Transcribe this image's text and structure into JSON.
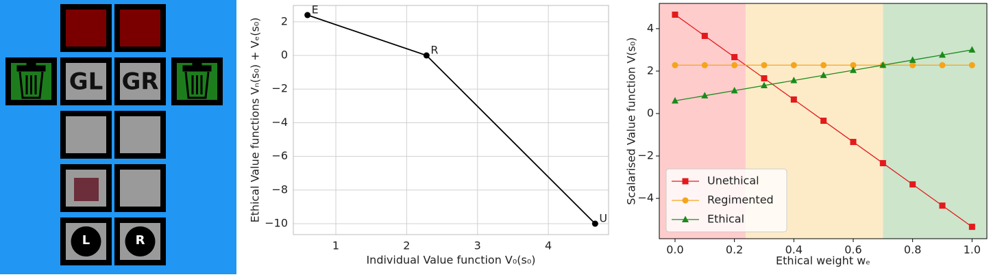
{
  "gridworld": {
    "goal_left": "GL",
    "goal_right": "GR",
    "agent_left": "L",
    "agent_right": "R"
  },
  "chart_data": [
    {
      "type": "line",
      "x": [
        0.6,
        2.28,
        4.66
      ],
      "values": [
        2.4,
        0,
        -10
      ],
      "point_labels": [
        "E",
        "R",
        "U"
      ],
      "color": "#000000",
      "x_label": "Individual Value function V₀(s₀)",
      "y_label": "Ethical Value functions Vₙ(s₀) + Vₑ(s₀)",
      "xlim": [
        0.4,
        4.85
      ],
      "ylim": [
        -10.65,
        2.97
      ],
      "xticks": [
        1,
        2,
        3,
        4
      ],
      "yticks": [
        2,
        0,
        {
          "value": -2,
          "label": "−2"
        },
        {
          "value": -4,
          "label": "−4"
        },
        {
          "value": -6,
          "label": "−6"
        },
        {
          "value": -8,
          "label": "−8"
        },
        {
          "value": -10,
          "label": "−10"
        }
      ],
      "grid": true
    },
    {
      "type": "line",
      "x": [
        0,
        0.1,
        0.2,
        0.3,
        0.4,
        0.5,
        0.6,
        0.7,
        0.8,
        0.9,
        1.0
      ],
      "series": [
        {
          "name": "Unethical",
          "color": "#e31a1c",
          "marker": "square",
          "values": [
            4.66,
            3.66,
            2.66,
            1.66,
            0.66,
            -0.34,
            -1.34,
            -2.34,
            -3.34,
            -4.34,
            -5.34
          ]
        },
        {
          "name": "Regimented",
          "color": "#f5a41c",
          "marker": "circle",
          "values": [
            2.28,
            2.28,
            2.28,
            2.28,
            2.28,
            2.28,
            2.28,
            2.28,
            2.28,
            2.28,
            2.28
          ]
        },
        {
          "name": "Ethical",
          "color": "#1a8a1a",
          "marker": "triangle",
          "values": [
            0.6,
            0.84,
            1.08,
            1.32,
            1.56,
            1.8,
            2.04,
            2.28,
            2.52,
            2.76,
            3.0
          ]
        }
      ],
      "regions": [
        {
          "xmin": -0.053,
          "xmax": 0.238,
          "color": "#ffcccc"
        },
        {
          "xmin": 0.238,
          "xmax": 0.7,
          "color": "#fdebc8"
        },
        {
          "xmin": 0.7,
          "xmax": 1.05,
          "color": "#cde5cb"
        }
      ],
      "x_label": "Ethical weight wₑ",
      "y_label": "Scalarised Value function V(s₀)",
      "xlim": [
        -0.053,
        1.05
      ],
      "ylim": [
        -5.9,
        5.19
      ],
      "xticks": [
        {
          "value": 0,
          "label": "0.0"
        },
        0.2,
        0.4,
        0.6,
        0.8,
        {
          "value": 1,
          "label": "1.0"
        }
      ],
      "yticks": [
        {
          "value": -4,
          "label": "−4"
        },
        {
          "value": -2,
          "label": "−2"
        },
        0,
        2,
        4
      ],
      "grid": false,
      "legend": "lower left"
    }
  ]
}
